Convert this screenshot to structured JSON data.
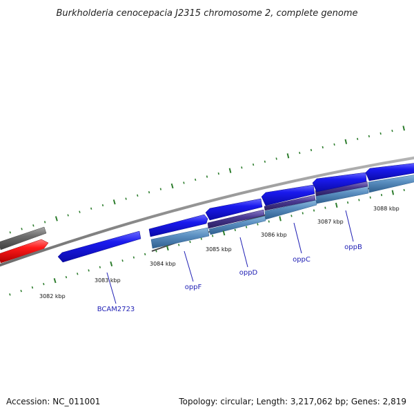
{
  "title": "Burkholderia cenocepacia J2315 chromosome 2, complete genome",
  "footer": {
    "accession": "Accession: NC_011001",
    "topology": "Topology: circular; Length: 3,217,062 bp; Genes: 2,819"
  },
  "colors": {
    "backbone": "#8c8c8c",
    "gene_forward": "#1010e6",
    "gene_reverse": "#1010e6",
    "operon_light": "#4f84b4",
    "operon_dark": "#4a3c86",
    "highlight_red": "#ff1a1a",
    "gray_feature": "#6d6d6d",
    "tick": "#2d7d2d",
    "label_gene": "#1e1eb4"
  },
  "chart_data": {
    "type": "genome-map",
    "scale_labels": [
      "3082 kbp",
      "3083 kbp",
      "3084 kbp",
      "3085 kbp",
      "3086 kbp",
      "3087 kbp",
      "3088 kbp"
    ],
    "genes": [
      {
        "name": "BCAM2723"
      },
      {
        "name": "oppF"
      },
      {
        "name": "oppD"
      },
      {
        "name": "oppC"
      },
      {
        "name": "oppB"
      }
    ]
  }
}
